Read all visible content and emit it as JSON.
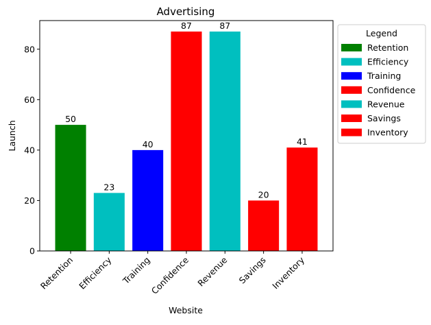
{
  "chart_data": {
    "type": "bar",
    "title": "Advertising",
    "xlabel": "Website",
    "ylabel": "Launch",
    "categories": [
      "Retention",
      "Efficiency",
      "Training",
      "Confidence",
      "Revenue",
      "Savings",
      "Inventory"
    ],
    "values": [
      50,
      23,
      40,
      87,
      87,
      20,
      41
    ],
    "colors": [
      "#008000",
      "#00bfbf",
      "#0000ff",
      "#ff0000",
      "#00bfbf",
      "#ff0000",
      "#ff0000"
    ],
    "ylim": [
      0,
      91.35
    ],
    "yticks": [
      0,
      20,
      40,
      60,
      80
    ],
    "grid": false,
    "legend": {
      "title": "Legend",
      "placement": "outside-top-right",
      "entries": [
        {
          "label": "Retention",
          "color": "#008000"
        },
        {
          "label": "Efficiency",
          "color": "#00bfbf"
        },
        {
          "label": "Training",
          "color": "#0000ff"
        },
        {
          "label": "Confidence",
          "color": "#ff0000"
        },
        {
          "label": "Revenue",
          "color": "#00bfbf"
        },
        {
          "label": "Savings",
          "color": "#ff0000"
        },
        {
          "label": "Inventory",
          "color": "#ff0000"
        }
      ]
    }
  }
}
